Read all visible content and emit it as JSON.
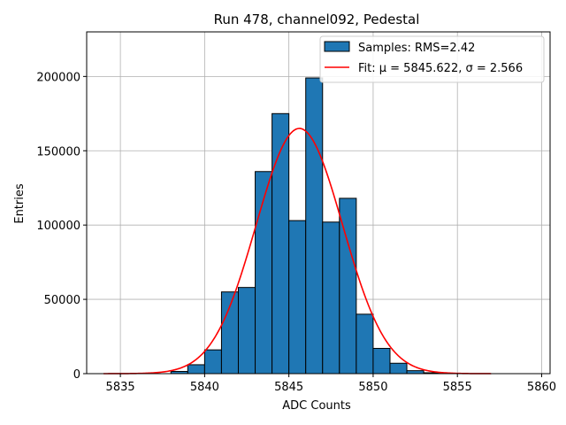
{
  "chart_data": {
    "type": "bar",
    "title": "Run 478, channel092, Pedestal",
    "xlabel": "ADC Counts",
    "ylabel": "Entries",
    "xlim": [
      5833.0,
      5860.5
    ],
    "ylim": [
      0,
      230000
    ],
    "xticks": [
      5835,
      5840,
      5845,
      5850,
      5855,
      5860
    ],
    "yticks": [
      0,
      50000,
      100000,
      150000,
      200000
    ],
    "grid": true,
    "legend_position": "top-right",
    "bin_width": 1,
    "bins": [
      {
        "left": 5838,
        "value": 1500
      },
      {
        "left": 5839,
        "value": 6000
      },
      {
        "left": 5840,
        "value": 16000
      },
      {
        "left": 5841,
        "value": 55000
      },
      {
        "left": 5842,
        "value": 58000
      },
      {
        "left": 5843,
        "value": 136000
      },
      {
        "left": 5844,
        "value": 175000
      },
      {
        "left": 5845,
        "value": 103000
      },
      {
        "left": 5846,
        "value": 199000
      },
      {
        "left": 5847,
        "value": 102000
      },
      {
        "left": 5848,
        "value": 118000
      },
      {
        "left": 5849,
        "value": 40000
      },
      {
        "left": 5850,
        "value": 17000
      },
      {
        "left": 5851,
        "value": 7000
      },
      {
        "left": 5852,
        "value": 2000
      },
      {
        "left": 5853,
        "value": 600
      }
    ],
    "fit": {
      "mu": 5845.622,
      "sigma": 2.566,
      "amplitude": 165000,
      "x_range": [
        5834,
        5857
      ]
    },
    "series": [
      {
        "name": "Samples: RMS=2.42",
        "kind": "histogram",
        "color": "#1f77b4",
        "edge_color": "#000000"
      },
      {
        "name": "Fit: μ = 5845.622, σ = 2.566",
        "kind": "line",
        "color": "#ff0000"
      }
    ]
  }
}
